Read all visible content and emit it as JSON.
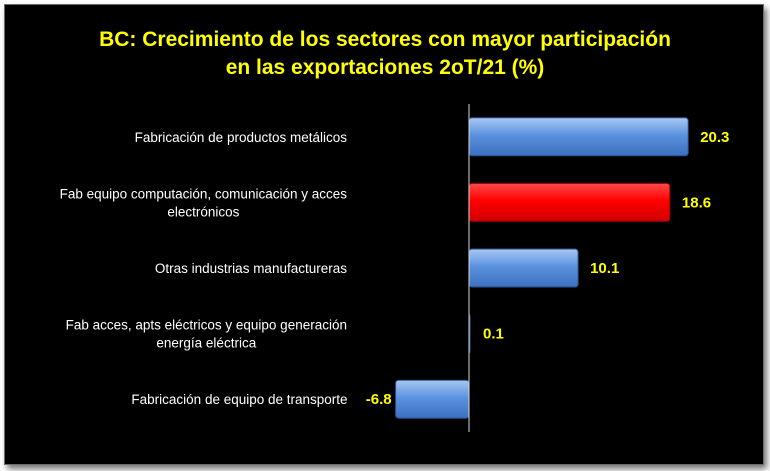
{
  "chart_data": {
    "type": "bar",
    "orientation": "horizontal",
    "title": "BC: Crecimiento de los sectores con mayor participación en las exportaciones 2oT/21  (%)",
    "title_lines": [
      "BC: Crecimiento de los sectores con mayor participación",
      "en las exportaciones 2oT/21  (%)"
    ],
    "categories": [
      "Fabricación de productos metálicos",
      "Fab equipo computación, comunicación y acces electrónicos",
      "Otras industrias manufactureras",
      "Fab acces, apts eléctricos y equipo generación energía eléctrica",
      "Fabricación de equipo de transporte"
    ],
    "category_lines": [
      [
        "Fabricación de productos metálicos"
      ],
      [
        "Fab equipo computación, comunicación y acces",
        "electrónicos"
      ],
      [
        "Otras industrias manufactureras"
      ],
      [
        "Fab acces, apts eléctricos y equipo generación",
        "energía eléctrica"
      ],
      [
        "Fabricación de equipo de transporte"
      ]
    ],
    "values": [
      20.3,
      18.6,
      10.1,
      0.1,
      -6.8
    ],
    "data_labels": [
      "20.3",
      "18.6",
      "10.1",
      "0.1",
      "-6.8"
    ],
    "bar_colors": [
      "#4f86d8",
      "#ff0000",
      "#4f86d8",
      "#4f86d8",
      "#4f86d8"
    ],
    "xlim": [
      -7,
      20.3
    ],
    "grid": false,
    "legend": "none",
    "colors": {
      "background": "#000000",
      "title": "#ffff00",
      "labels": "#ffffff",
      "data_labels": "#ffff00",
      "axis": "#d9d9d9"
    }
  }
}
